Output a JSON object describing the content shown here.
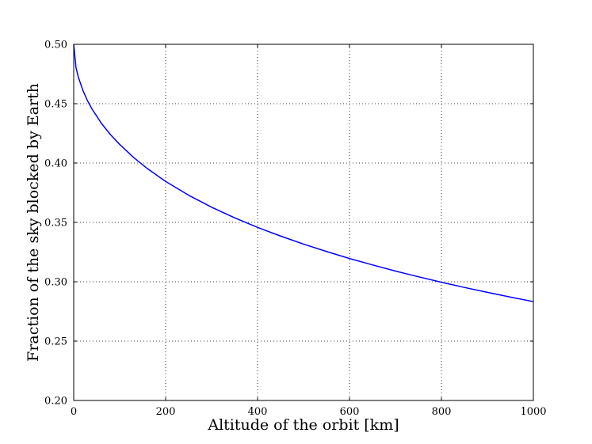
{
  "chart_data": {
    "type": "line",
    "title": "",
    "xlabel": "Altitude of the orbit [km]",
    "ylabel": "Fraction of the sky blocked by Earth",
    "xlim": [
      0,
      1000
    ],
    "ylim": [
      0.2,
      0.5
    ],
    "x_ticks": [
      "0",
      "200",
      "400",
      "600",
      "800",
      "1000"
    ],
    "y_ticks": [
      "0.20",
      "0.25",
      "0.30",
      "0.35",
      "0.40",
      "0.45",
      "0.50"
    ],
    "grid": true,
    "legend": "none",
    "series": [
      {
        "color": "#0000ff",
        "x": [
          0,
          5,
          10,
          20,
          30,
          40,
          60,
          80,
          100,
          130,
          160,
          200,
          250,
          300,
          350,
          400,
          450,
          500,
          550,
          600,
          650,
          700,
          750,
          800,
          850,
          900,
          950,
          1000
        ],
        "y": [
          0.5,
          0.4804,
          0.4725,
          0.4612,
          0.4525,
          0.4454,
          0.4336,
          0.4239,
          0.4157,
          0.4048,
          0.3954,
          0.3845,
          0.3729,
          0.3628,
          0.3539,
          0.3458,
          0.3385,
          0.3317,
          0.3255,
          0.3196,
          0.3142,
          0.309,
          0.3042,
          0.2996,
          0.2952,
          0.2911,
          0.2871,
          0.2833
        ]
      }
    ]
  }
}
